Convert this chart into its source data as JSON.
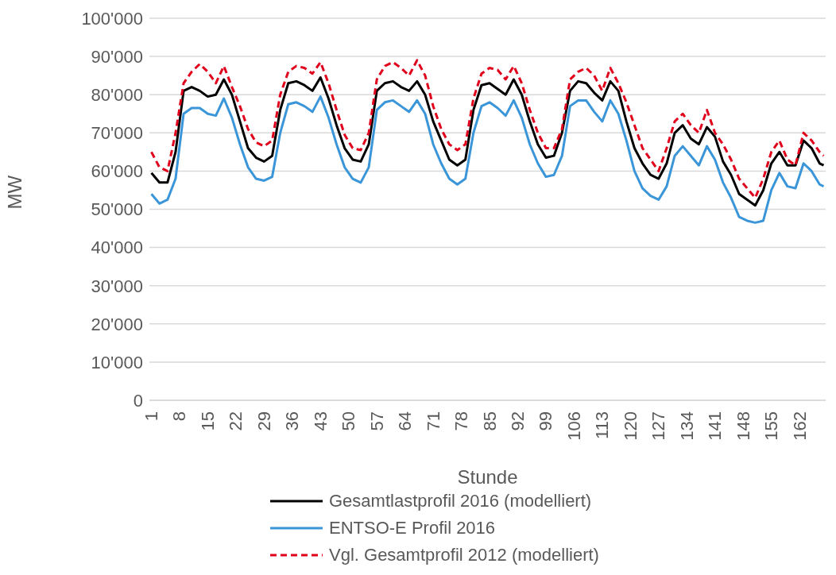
{
  "chart_data": {
    "type": "line",
    "xlabel": "Stunde",
    "ylabel": "MW",
    "x": [
      1,
      3,
      5,
      7,
      9,
      11,
      13,
      15,
      17,
      19,
      21,
      23,
      25,
      27,
      29,
      31,
      33,
      35,
      37,
      39,
      41,
      43,
      45,
      47,
      49,
      51,
      53,
      55,
      57,
      59,
      61,
      63,
      65,
      67,
      69,
      71,
      73,
      75,
      77,
      79,
      81,
      83,
      85,
      87,
      89,
      91,
      93,
      95,
      97,
      99,
      101,
      103,
      105,
      107,
      109,
      111,
      113,
      115,
      117,
      119,
      121,
      123,
      125,
      127,
      129,
      131,
      133,
      135,
      137,
      139,
      141,
      143,
      145,
      147,
      149,
      151,
      153,
      155,
      157,
      159,
      161,
      163,
      165,
      167,
      168
    ],
    "series": [
      {
        "name": "Gesamtlastprofil 2016 (modelliert)",
        "color": "#000000",
        "line_style": "solid",
        "values": [
          59500,
          57000,
          57000,
          65000,
          81000,
          82000,
          81000,
          79500,
          80000,
          84000,
          80000,
          73000,
          66000,
          63500,
          62500,
          64000,
          76000,
          83000,
          83500,
          82500,
          81000,
          84500,
          79000,
          72000,
          66000,
          63000,
          62500,
          67000,
          81000,
          83000,
          83500,
          82000,
          81000,
          83500,
          80000,
          73000,
          68000,
          63000,
          61500,
          63000,
          76000,
          82500,
          83000,
          81500,
          80000,
          84000,
          80000,
          73000,
          67000,
          63500,
          64000,
          70000,
          81000,
          83500,
          83000,
          80500,
          78500,
          83500,
          81000,
          73000,
          66000,
          62000,
          59000,
          58000,
          62000,
          70000,
          72000,
          68500,
          67000,
          71500,
          69000,
          62500,
          59000,
          54000,
          52500,
          51000,
          55000,
          62000,
          65000,
          61500,
          61500,
          68000,
          66000,
          62000,
          61500
        ]
      },
      {
        "name": "ENTSO-E Profil 2016",
        "color": "#3a96d8",
        "line_style": "solid",
        "values": [
          54000,
          51500,
          52500,
          58000,
          75000,
          76500,
          76500,
          75000,
          74500,
          79000,
          74000,
          67000,
          61000,
          58000,
          57500,
          58500,
          70000,
          77500,
          78000,
          77000,
          75500,
          79500,
          74000,
          67000,
          61000,
          58000,
          57000,
          61000,
          76000,
          78000,
          78500,
          77000,
          75500,
          78500,
          75000,
          67000,
          62000,
          58000,
          56500,
          58000,
          70000,
          77000,
          78000,
          76500,
          74500,
          78500,
          74000,
          67000,
          62000,
          58500,
          59000,
          64000,
          77000,
          78500,
          78500,
          75500,
          73000,
          78500,
          75000,
          68000,
          60000,
          55500,
          53500,
          52500,
          56000,
          64000,
          66500,
          64000,
          61500,
          66500,
          63000,
          57000,
          53000,
          48000,
          47000,
          46500,
          47000,
          55000,
          59500,
          56000,
          55500,
          62000,
          60000,
          56500,
          56000
        ]
      },
      {
        "name": "Vgl. Gesamtprofil 2012 (modelliert)",
        "color": "#e0001b",
        "line_style": "dashed",
        "values": [
          65000,
          61000,
          60000,
          70000,
          83000,
          86000,
          88000,
          86000,
          83000,
          87500,
          82000,
          77000,
          71000,
          67500,
          66500,
          68000,
          80000,
          86000,
          87500,
          87000,
          85500,
          88500,
          83000,
          76000,
          69500,
          66000,
          65500,
          70000,
          84000,
          87500,
          88500,
          87000,
          85000,
          89000,
          85000,
          77000,
          71000,
          67000,
          65500,
          67000,
          79000,
          85500,
          87000,
          86500,
          84000,
          87500,
          83000,
          76000,
          70000,
          66000,
          66000,
          71000,
          84000,
          86000,
          87000,
          85000,
          81000,
          87000,
          83000,
          78000,
          72000,
          66000,
          63000,
          60000,
          66000,
          73000,
          75000,
          72000,
          70000,
          76000,
          70000,
          67000,
          63000,
          58000,
          55500,
          53000,
          58000,
          65000,
          68000,
          63000,
          61500,
          70000,
          68000,
          65000,
          64000
        ]
      }
    ],
    "xlim": [
      0.5,
      168.5
    ],
    "xticks": [
      1,
      8,
      15,
      22,
      29,
      36,
      43,
      50,
      57,
      64,
      71,
      78,
      85,
      92,
      99,
      106,
      113,
      120,
      127,
      134,
      141,
      148,
      155,
      162
    ],
    "ylim": [
      0,
      100000
    ],
    "yticks": [
      0,
      {
        "value": 10000,
        "label": "10'000"
      },
      {
        "value": 20000,
        "label": "20'000"
      },
      {
        "value": 30000,
        "label": "30'000"
      },
      {
        "value": 40000,
        "label": "40'000"
      },
      {
        "value": 50000,
        "label": "50'000"
      },
      {
        "value": 60000,
        "label": "60'000"
      },
      {
        "value": 70000,
        "label": "70'000"
      },
      {
        "value": 80000,
        "label": "80'000"
      },
      {
        "value": 90000,
        "label": "90'000"
      },
      {
        "value": 100000,
        "label": "100'000"
      }
    ],
    "grid": "y",
    "legend": "bottom",
    "marker": "none"
  }
}
